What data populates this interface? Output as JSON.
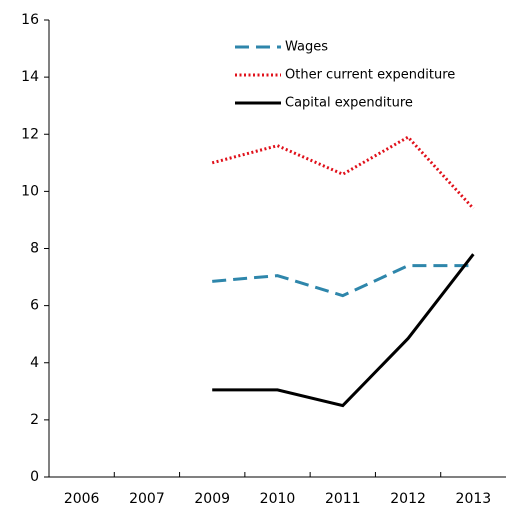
{
  "chart_data": {
    "type": "line",
    "categories": [
      "2006",
      "2007",
      "2009",
      "2010",
      "2011",
      "2012",
      "2013"
    ],
    "series": [
      {
        "name": "Wages",
        "color": "#2e86ab",
        "dash": "dashed",
        "values": [
          null,
          null,
          6.85,
          7.05,
          6.35,
          7.4,
          7.4
        ]
      },
      {
        "name": "Other current expenditure",
        "color": "#e0101a",
        "dash": "dotted",
        "values": [
          null,
          null,
          11.0,
          11.6,
          10.6,
          11.9,
          9.4
        ]
      },
      {
        "name": "Capital expenditure",
        "color": "#000000",
        "dash": "solid",
        "values": [
          null,
          null,
          3.05,
          3.05,
          2.5,
          4.85,
          7.8
        ]
      }
    ],
    "ylim": [
      0,
      16
    ],
    "yticks": [
      0,
      2,
      4,
      6,
      8,
      10,
      12,
      14,
      16
    ],
    "grid": false,
    "legend": "top-center"
  }
}
